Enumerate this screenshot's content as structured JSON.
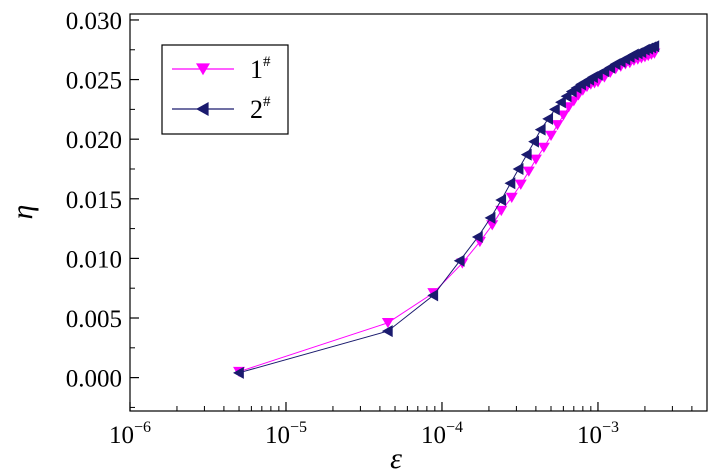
{
  "chart_data": {
    "type": "scatter",
    "xlabel": "ε",
    "ylabel": "η",
    "xscale": "log",
    "xlim": [
      1e-06,
      0.005
    ],
    "ylim": [
      -0.0028,
      0.0305
    ],
    "grid": false,
    "legend_position": "top-left",
    "x_ticks": [
      {
        "value": 1e-06,
        "base": "10",
        "exp": "−6"
      },
      {
        "value": 1e-05,
        "base": "10",
        "exp": "−5"
      },
      {
        "value": 0.0001,
        "base": "10",
        "exp": "−4"
      },
      {
        "value": 0.001,
        "base": "10",
        "exp": "−3"
      }
    ],
    "y_ticks": [
      "0.000",
      "0.005",
      "0.010",
      "0.015",
      "0.020",
      "0.025",
      "0.030"
    ],
    "y_tick_values": [
      0.0,
      0.005,
      0.01,
      0.015,
      0.02,
      0.025,
      0.03
    ],
    "series": [
      {
        "name": "1",
        "name_sup": "#",
        "marker": "triangle-down",
        "color": "#ff00ff",
        "x": [
          5e-06,
          4.5e-05,
          8.8e-05,
          0.000135,
          0.000175,
          0.00021,
          0.00024,
          0.00028,
          0.00032,
          0.00036,
          0.0004,
          0.00045,
          0.0005,
          0.00055,
          0.0006,
          0.00065,
          0.0007,
          0.00075,
          0.0008,
          0.00085,
          0.0009,
          0.00095,
          0.001,
          0.0011,
          0.0012,
          0.0013,
          0.0014,
          0.0015,
          0.0016,
          0.0017,
          0.0018,
          0.0019,
          0.002,
          0.0021,
          0.0022,
          0.0023
        ],
        "y": [
          0.0005,
          0.0046,
          0.0071,
          0.0096,
          0.0114,
          0.0128,
          0.014,
          0.0151,
          0.0162,
          0.0173,
          0.0183,
          0.0193,
          0.0203,
          0.0212,
          0.022,
          0.0227,
          0.0232,
          0.0237,
          0.0241,
          0.0244,
          0.0246,
          0.0247,
          0.0248,
          0.0252,
          0.0256,
          0.0259,
          0.0261,
          0.0263,
          0.0264,
          0.0266,
          0.0267,
          0.0268,
          0.0269,
          0.027,
          0.0271,
          0.0272
        ]
      },
      {
        "name": "2",
        "name_sup": "#",
        "marker": "triangle-left",
        "color": "#1a1a6e",
        "x": [
          5e-06,
          4.5e-05,
          8.8e-05,
          0.00013,
          0.00017,
          0.000205,
          0.00024,
          0.000275,
          0.00031,
          0.00035,
          0.00039,
          0.00043,
          0.00048,
          0.00053,
          0.00058,
          0.00063,
          0.00068,
          0.00073,
          0.00078,
          0.00083,
          0.00088,
          0.00093,
          0.001,
          0.0011,
          0.0012,
          0.0013,
          0.0014,
          0.0015,
          0.0016,
          0.0017,
          0.0018,
          0.0019,
          0.002,
          0.0021,
          0.0022,
          0.0023
        ],
        "y": [
          0.0004,
          0.0039,
          0.0069,
          0.0098,
          0.0118,
          0.0134,
          0.0149,
          0.0163,
          0.0175,
          0.0187,
          0.0198,
          0.0208,
          0.0217,
          0.0225,
          0.0231,
          0.0236,
          0.024,
          0.0243,
          0.0246,
          0.0248,
          0.025,
          0.0252,
          0.0254,
          0.0257,
          0.026,
          0.0263,
          0.0265,
          0.0267,
          0.0269,
          0.0271,
          0.0272,
          0.0273,
          0.0275,
          0.0276,
          0.0277,
          0.0278
        ]
      }
    ]
  }
}
